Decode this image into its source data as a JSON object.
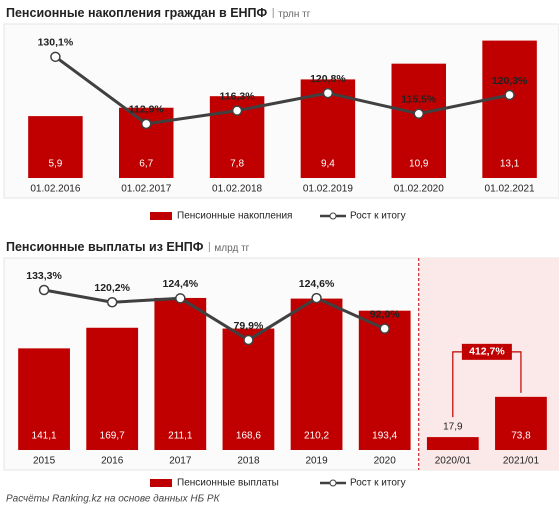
{
  "chart_data": [
    {
      "type": "bar_line",
      "title": "Пенсионные накопления граждан в ЕНПФ",
      "subtitle": "трлн тг",
      "categories": [
        "01.02.2016",
        "01.02.2017",
        "01.02.2018",
        "01.02.2019",
        "01.02.2020",
        "01.02.2021"
      ],
      "series": [
        {
          "name": "Пенсионные накопления",
          "color": "#c00000",
          "values": [
            5.9,
            6.7,
            7.8,
            9.4,
            10.9,
            13.1
          ],
          "value_labels": [
            "5,9",
            "6,7",
            "7,8",
            "9,4",
            "10,9",
            "13,1"
          ]
        },
        {
          "name": "Рост к итогу",
          "color": "#404040",
          "axis": "y2",
          "values": [
            130.1,
            112.9,
            116.3,
            120.8,
            115.5,
            120.3
          ],
          "value_labels": [
            "130,1%",
            "112,9%",
            "116,3%",
            "120,8%",
            "115,5%",
            "120,3%"
          ]
        }
      ],
      "ylim": [
        0,
        14.3
      ],
      "y2lim": [
        99,
        137.5
      ]
    },
    {
      "type": "bar_line",
      "title": "Пенсионные выплаты из ЕНПФ",
      "subtitle": "млрд тг",
      "categories": [
        "2015",
        "2016",
        "2017",
        "2018",
        "2019",
        "2020",
        "2020/01",
        "2021/01"
      ],
      "series": [
        {
          "name": "Пенсионные выплаты",
          "color": "#c00000",
          "values": [
            141.1,
            169.7,
            211.1,
            168.6,
            210.2,
            193.4,
            17.9,
            73.8
          ],
          "value_labels": [
            "141,1",
            "169,7",
            "211,1",
            "168,6",
            "210,2",
            "193,4",
            "17,9",
            "73,8"
          ]
        },
        {
          "name": "Рост к итогу",
          "color": "#404040",
          "axis": "y2",
          "values": [
            133.3,
            120.2,
            124.4,
            79.9,
            124.6,
            92.0,
            null,
            null
          ],
          "value_labels": [
            "133,3%",
            "120,2%",
            "124,4%",
            "79,9%",
            "124,6%",
            "92,0%",
            null,
            null
          ]
        }
      ],
      "annotation": "412,7%",
      "ylim": [
        0,
        261
      ],
      "y2lim": [
        -37.6,
        163.2
      ]
    }
  ],
  "footer": "Расчёты Ranking.kz на основе данных НБ РК"
}
